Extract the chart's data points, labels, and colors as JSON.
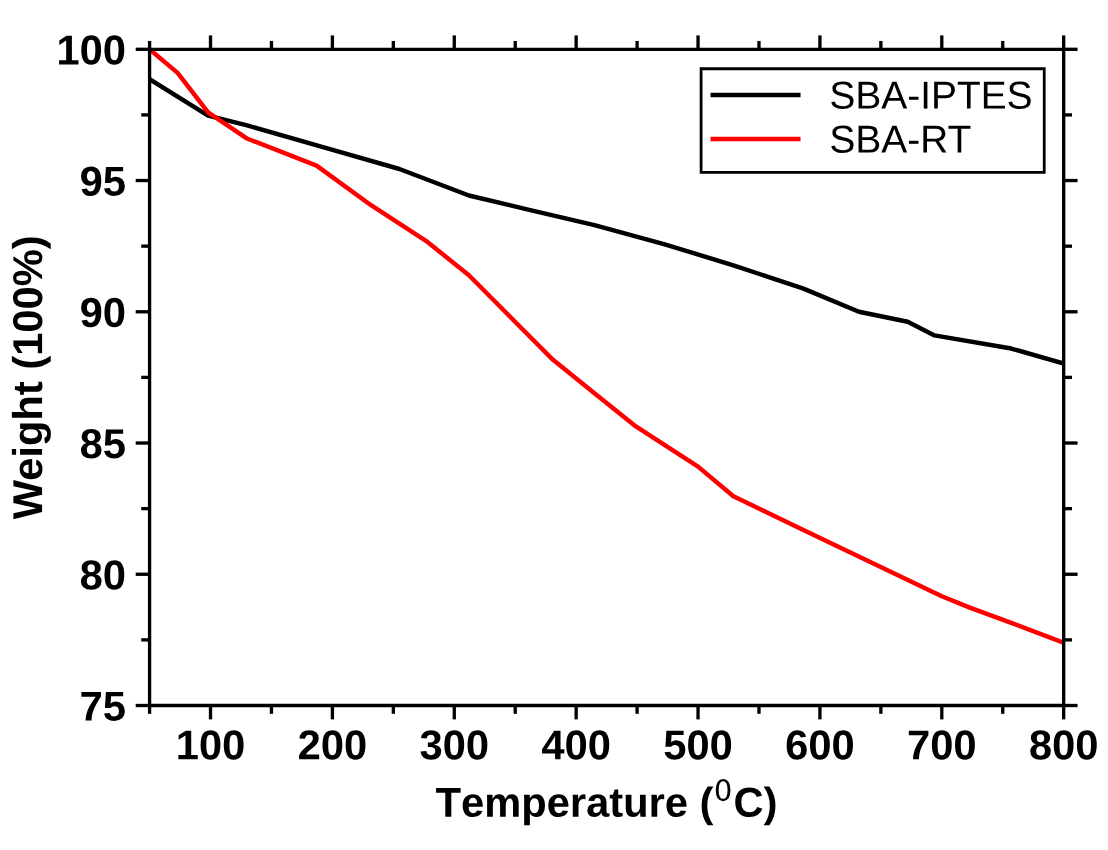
{
  "chart_data": {
    "type": "line",
    "xlabel": "Temperature ($^{0}$C)",
    "ylabel": "Weight (100%)",
    "xlim": [
      50,
      800
    ],
    "ylim": [
      75,
      100
    ],
    "xticks": [
      {
        "value": 50,
        "label": null
      },
      100,
      {
        "value": 150,
        "label": null
      },
      200,
      {
        "value": 250,
        "label": null
      },
      300,
      {
        "value": 350,
        "label": null
      },
      400,
      {
        "value": 450,
        "label": null
      },
      500,
      {
        "value": 550,
        "label": null
      },
      600,
      {
        "value": 650,
        "label": null
      },
      700,
      {
        "value": 750,
        "label": null
      },
      800
    ],
    "yticks": [
      75,
      {
        "value": 77.5,
        "label": null
      },
      80,
      {
        "value": 82.5,
        "label": null
      },
      85,
      {
        "value": 87.5,
        "label": null
      },
      90,
      {
        "value": 92.5,
        "label": null
      },
      95,
      {
        "value": 97.5,
        "label": null
      },
      100
    ],
    "grid": false,
    "legend": "top right",
    "line_style": "solid",
    "marker": "none",
    "series": [
      {
        "name": "SBA-IPTES",
        "color": "#000000",
        "x": [
          50,
          98,
          130,
          198,
          255,
          312,
          358,
          415,
          472,
          529,
          586,
          632,
          672,
          694,
          757,
          800
        ],
        "values": [
          98.86,
          97.47,
          97.1,
          96.2,
          95.44,
          94.43,
          93.92,
          93.3,
          92.58,
          91.77,
          90.89,
          90.0,
          89.62,
          89.1,
          88.6,
          88.03
        ]
      },
      {
        "name": "SBA-RT",
        "color": "#ff0000",
        "x": [
          50,
          73,
          98,
          130,
          187,
          232,
          278,
          312,
          358,
          381,
          415,
          449,
          500,
          529,
          586,
          643,
          700,
          723,
          757,
          800
        ],
        "values": [
          100,
          99.1,
          97.6,
          96.6,
          95.57,
          94.05,
          92.66,
          91.39,
          89.24,
          88.17,
          86.9,
          85.63,
          84.1,
          82.97,
          81.7,
          80.43,
          79.16,
          78.73,
          78.15,
          77.39
        ]
      }
    ]
  }
}
